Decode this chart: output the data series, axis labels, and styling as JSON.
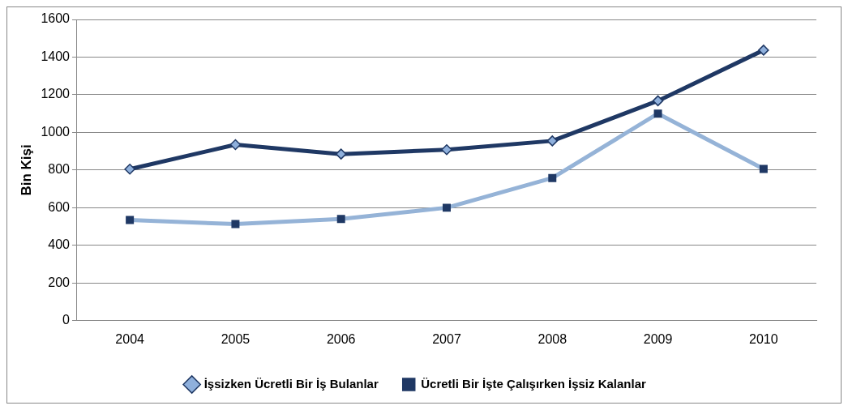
{
  "chart_data": {
    "type": "line",
    "ylabel": "Bin Kişi",
    "categories": [
      "2004",
      "2005",
      "2006",
      "2007",
      "2008",
      "2009",
      "2010"
    ],
    "series": [
      {
        "name": "İşsizken Ücretli Bir İş Bulanlar",
        "color": "#1f3864",
        "marker": "diamond",
        "values": [
          805,
          935,
          885,
          908,
          955,
          1168,
          1437
        ]
      },
      {
        "name": "Ücretli Bir İşte Çalışırken İşsiz Kalanlar",
        "color": "#95b3d7",
        "marker": "square",
        "values": [
          535,
          513,
          540,
          600,
          758,
          1100,
          806
        ]
      }
    ],
    "ylim": [
      0,
      1600
    ],
    "yticks": [
      0,
      200,
      400,
      600,
      800,
      1000,
      1200,
      1400,
      1600
    ],
    "grid": "y",
    "legend": "bottom"
  }
}
